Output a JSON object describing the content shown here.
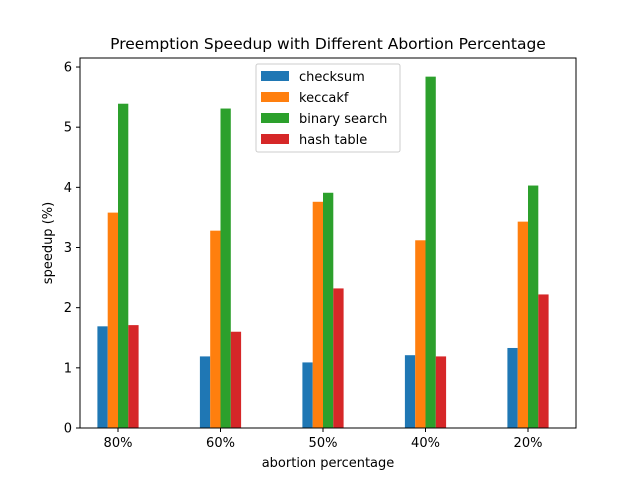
{
  "chart_data": {
    "type": "bar",
    "title": "Preemption Speedup with Different Abortion Percentage",
    "xlabel": "abortion percentage",
    "ylabel": "speedup (%)",
    "categories": [
      "80%",
      "60%",
      "50%",
      "40%",
      "20%"
    ],
    "ylim": [
      0,
      6.15
    ],
    "yticks": [
      0,
      1,
      2,
      3,
      4,
      5,
      6
    ],
    "grid": false,
    "legend_position": "top-center",
    "series": [
      {
        "name": "checksum",
        "color": "#1f77b4",
        "values": [
          1.69,
          1.19,
          1.09,
          1.21,
          1.33
        ]
      },
      {
        "name": "keccakf",
        "color": "#ff7f0e",
        "values": [
          3.58,
          3.28,
          3.76,
          3.12,
          3.43
        ]
      },
      {
        "name": "binary search",
        "color": "#2ca02c",
        "values": [
          5.39,
          5.31,
          3.91,
          5.84,
          4.03
        ]
      },
      {
        "name": "hash table",
        "color": "#d62728",
        "values": [
          1.71,
          1.6,
          2.32,
          1.19,
          2.22
        ]
      }
    ]
  }
}
